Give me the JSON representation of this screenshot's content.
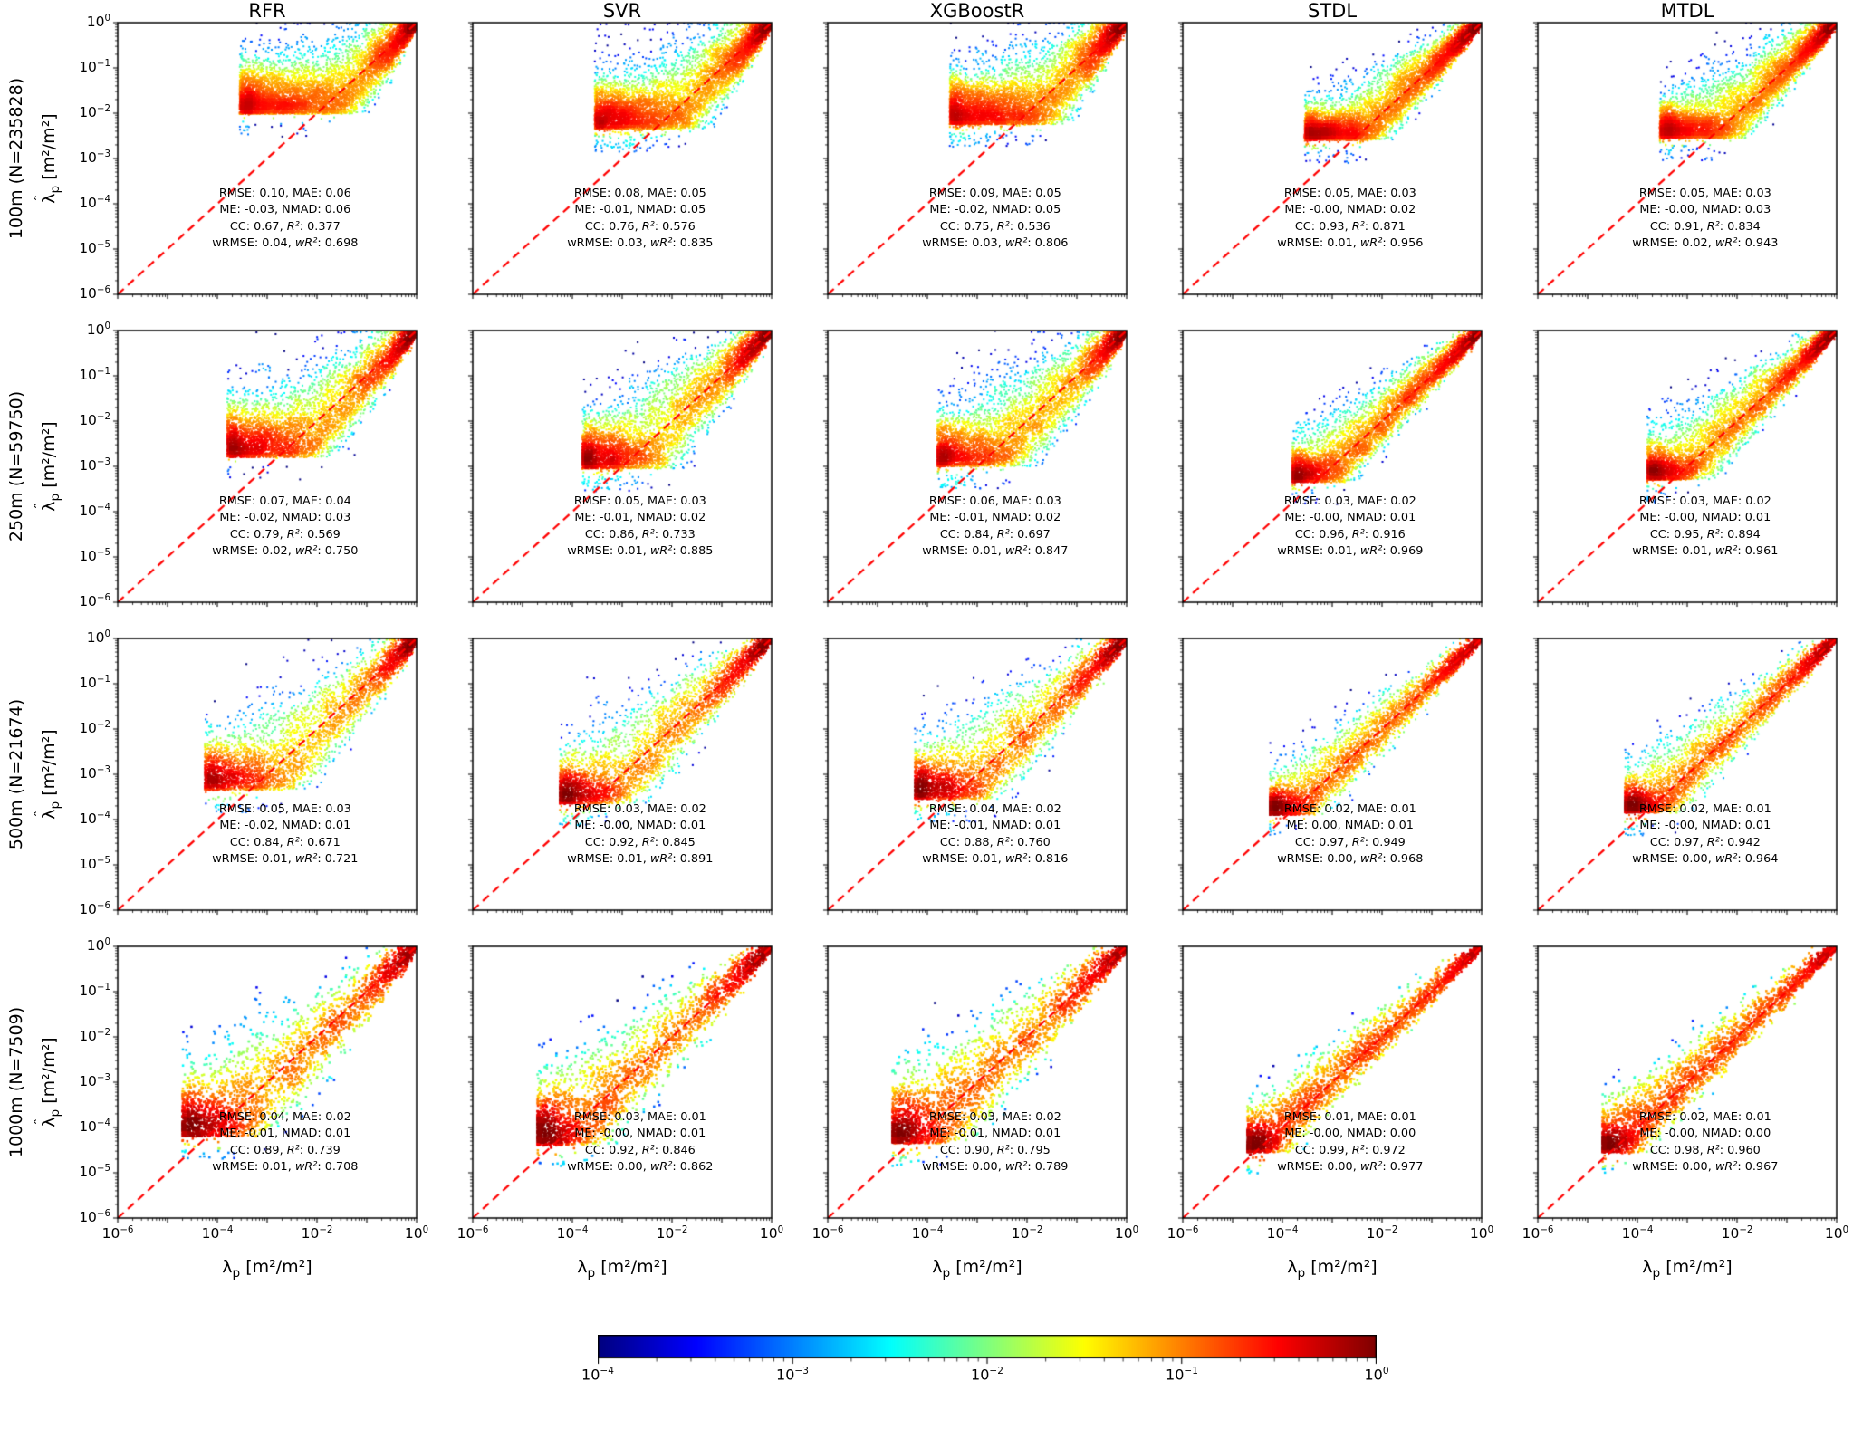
{
  "chart_data": {
    "type": "scatter",
    "description": "Density-colored scatter plots of predicted vs reference plan area index on log-log axes, five models by four resolutions, with 1:1 dashed red line, per-panel error statistics and a shared horizontal jet colorbar.",
    "columns": [
      "RFR",
      "SVR",
      "XGBoostR",
      "STDL",
      "MTDL"
    ],
    "rows": [
      {
        "label": "100m (N=235828)",
        "resolution": "100m",
        "N": 235828,
        "render_hints": {
          "xlo": -3.55,
          "pw": 1.3,
          "n": 6500,
          "corner": 0.1,
          "cs": 0.5,
          "ps": 2,
          "bs": 4
        }
      },
      {
        "label": "250m (N=59750)",
        "resolution": "250m",
        "N": 59750,
        "render_hints": {
          "xlo": -3.8,
          "pw": 1.35,
          "n": 5200,
          "corner": 0.09,
          "cs": 0.5,
          "ps": 2,
          "bs": 4
        }
      },
      {
        "label": "500m (N=21674)",
        "resolution": "500m",
        "N": 21674,
        "render_hints": {
          "xlo": -4.25,
          "pw": 1.45,
          "n": 4200,
          "corner": 0.07,
          "cs": 0.5,
          "ps": 2,
          "bs": 5
        }
      },
      {
        "label": "1000m (N=7509)",
        "resolution": "1000m",
        "N": 7509,
        "render_hints": {
          "xlo": -4.7,
          "pw": 1.55,
          "n": 2700,
          "corner": 0.06,
          "cs": 0.5,
          "ps": 2.5,
          "bs": 7
        }
      }
    ],
    "axes": {
      "xlabel": {
        "variable": "λ",
        "subscript": "p",
        "units": "[m²/m²]"
      },
      "ylabel": {
        "variable": "λ",
        "hat": "ˆ",
        "subscript": "p",
        "units": "[m²/m²]"
      },
      "scale": "log",
      "x_range_log10": [
        -6,
        0
      ],
      "y_range_log10": [
        -6,
        0
      ],
      "x_tick_exponents": [
        -6,
        -4,
        -2,
        0
      ],
      "y_tick_exponents": [
        0,
        -1,
        -2,
        -3,
        -4,
        -5,
        -6
      ]
    },
    "identity_line": {
      "color": "#ff0000",
      "style": "dashed"
    },
    "colorbar": {
      "colormap": "jet",
      "orientation": "horizontal",
      "range_log10": [
        -4,
        0
      ],
      "tick_exponents": [
        -4,
        -3,
        -2,
        -1,
        0
      ]
    },
    "stats_labels": {
      "rmse": "RMSE",
      "mae": "MAE",
      "me": "ME",
      "nmad": "NMAD",
      "cc": "CC",
      "r2": "R²",
      "wrmse": "wRMSE",
      "wr2": "wR²"
    },
    "panels": [
      [
        {
          "model": "RFR",
          "stats": {
            "rmse": "0.10",
            "mae": "0.06",
            "me": "-0.03",
            "nmad": "0.06",
            "cc": "0.67",
            "r2": "0.377",
            "wrmse": "0.04",
            "wr2": "0.698"
          },
          "cloud": {
            "smax": 0.95,
            "smin": 0.05,
            "floor": -2.02,
            "up": 0.5,
            "leak": 0.012,
            "bias": -0.15,
            "asym": 1.25
          }
        },
        {
          "model": "SVR",
          "stats": {
            "rmse": "0.08",
            "mae": "0.05",
            "me": "-0.01",
            "nmad": "0.05",
            "cc": "0.76",
            "r2": "0.576",
            "wrmse": "0.03",
            "wr2": "0.835"
          },
          "cloud": {
            "smax": 0.9,
            "smin": 0.05,
            "floor": -2.35,
            "up": 0.45,
            "leak": 0.05,
            "bias": -0.1,
            "asym": 1.25
          }
        },
        {
          "model": "XGBoostR",
          "stats": {
            "rmse": "0.09",
            "mae": "0.05",
            "me": "-0.02",
            "nmad": "0.05",
            "cc": "0.75",
            "r2": "0.536",
            "wrmse": "0.03",
            "wr2": "0.806"
          },
          "cloud": {
            "smax": 0.92,
            "smin": 0.05,
            "floor": -2.25,
            "up": 0.48,
            "leak": 0.04,
            "bias": -0.12,
            "asym": 1.25
          }
        },
        {
          "model": "STDL",
          "stats": {
            "rmse": "0.05",
            "mae": "0.03",
            "me": "-0.00",
            "nmad": "0.02",
            "cc": "0.93",
            "r2": "0.871",
            "wrmse": "0.01",
            "wr2": "0.956"
          },
          "cloud": {
            "smax": 0.5,
            "smin": 0.03,
            "floor": -2.6,
            "up": 0.32,
            "leak": 0.03,
            "bias": -0.02,
            "asym": 1.5
          }
        },
        {
          "model": "MTDL",
          "stats": {
            "rmse": "0.05",
            "mae": "0.03",
            "me": "-0.00",
            "nmad": "0.03",
            "cc": "0.91",
            "r2": "0.834",
            "wrmse": "0.02",
            "wr2": "0.943"
          },
          "cloud": {
            "smax": 0.58,
            "smin": 0.035,
            "floor": -2.55,
            "up": 0.36,
            "leak": 0.03,
            "bias": -0.03,
            "asym": 1.5
          }
        }
      ],
      [
        {
          "model": "RFR",
          "stats": {
            "rmse": "0.07",
            "mae": "0.04",
            "me": "-0.02",
            "nmad": "0.03",
            "cc": "0.79",
            "r2": "0.569",
            "wrmse": "0.02",
            "wr2": "0.750"
          },
          "cloud": {
            "smax": 0.9,
            "smin": 0.05,
            "floor": -2.8,
            "up": 0.5,
            "leak": 0.02,
            "bias": -0.15,
            "asym": 1.25
          }
        },
        {
          "model": "SVR",
          "stats": {
            "rmse": "0.05",
            "mae": "0.03",
            "me": "-0.01",
            "nmad": "0.02",
            "cc": "0.86",
            "r2": "0.733",
            "wrmse": "0.01",
            "wr2": "0.885"
          },
          "cloud": {
            "smax": 0.82,
            "smin": 0.045,
            "floor": -3.05,
            "up": 0.45,
            "leak": 0.05,
            "bias": -0.1,
            "asym": 1.25
          }
        },
        {
          "model": "XGBoostR",
          "stats": {
            "rmse": "0.06",
            "mae": "0.03",
            "me": "-0.01",
            "nmad": "0.02",
            "cc": "0.84",
            "r2": "0.697",
            "wrmse": "0.01",
            "wr2": "0.847"
          },
          "cloud": {
            "smax": 0.85,
            "smin": 0.05,
            "floor": -3.0,
            "up": 0.48,
            "leak": 0.04,
            "bias": -0.1,
            "asym": 1.25
          }
        },
        {
          "model": "STDL",
          "stats": {
            "rmse": "0.03",
            "mae": "0.02",
            "me": "-0.00",
            "nmad": "0.01",
            "cc": "0.96",
            "r2": "0.916",
            "wrmse": "0.01",
            "wr2": "0.969"
          },
          "cloud": {
            "smax": 0.45,
            "smin": 0.03,
            "floor": -3.35,
            "up": 0.3,
            "leak": 0.03,
            "bias": -0.02,
            "asym": 1.5
          }
        },
        {
          "model": "MTDL",
          "stats": {
            "rmse": "0.03",
            "mae": "0.02",
            "me": "-0.00",
            "nmad": "0.01",
            "cc": "0.95",
            "r2": "0.894",
            "wrmse": "0.01",
            "wr2": "0.961"
          },
          "cloud": {
            "smax": 0.5,
            "smin": 0.032,
            "floor": -3.3,
            "up": 0.33,
            "leak": 0.03,
            "bias": -0.03,
            "asym": 1.5
          }
        }
      ],
      [
        {
          "model": "RFR",
          "stats": {
            "rmse": "0.05",
            "mae": "0.03",
            "me": "-0.02",
            "nmad": "0.01",
            "cc": "0.84",
            "r2": "0.671",
            "wrmse": "0.01",
            "wr2": "0.721"
          },
          "cloud": {
            "smax": 0.85,
            "smin": 0.05,
            "floor": -3.35,
            "up": 0.5,
            "leak": 0.03,
            "bias": -0.15,
            "asym": 1.25
          }
        },
        {
          "model": "SVR",
          "stats": {
            "rmse": "0.03",
            "mae": "0.02",
            "me": "-0.00",
            "nmad": "0.01",
            "cc": "0.92",
            "r2": "0.845",
            "wrmse": "0.01",
            "wr2": "0.891"
          },
          "cloud": {
            "smax": 0.7,
            "smin": 0.04,
            "floor": -3.65,
            "up": 0.42,
            "leak": 0.05,
            "bias": -0.05,
            "asym": 1.3
          }
        },
        {
          "model": "XGBoostR",
          "stats": {
            "rmse": "0.04",
            "mae": "0.02",
            "me": "-0.01",
            "nmad": "0.01",
            "cc": "0.88",
            "r2": "0.760",
            "wrmse": "0.01",
            "wr2": "0.816"
          },
          "cloud": {
            "smax": 0.75,
            "smin": 0.045,
            "floor": -3.55,
            "up": 0.45,
            "leak": 0.05,
            "bias": -0.1,
            "asym": 1.3
          }
        },
        {
          "model": "STDL",
          "stats": {
            "rmse": "0.02",
            "mae": "0.01",
            "me": "0.00",
            "nmad": "0.01",
            "cc": "0.97",
            "r2": "0.949",
            "wrmse": "0.00",
            "wr2": "0.968"
          },
          "cloud": {
            "smax": 0.4,
            "smin": 0.028,
            "floor": -3.9,
            "up": 0.3,
            "leak": 0.04,
            "bias": 0.0,
            "asym": 1.5
          }
        },
        {
          "model": "MTDL",
          "stats": {
            "rmse": "0.02",
            "mae": "0.01",
            "me": "-0.00",
            "nmad": "0.01",
            "cc": "0.97",
            "r2": "0.942",
            "wrmse": "0.00",
            "wr2": "0.964"
          },
          "cloud": {
            "smax": 0.44,
            "smin": 0.03,
            "floor": -3.85,
            "up": 0.3,
            "leak": 0.04,
            "bias": -0.02,
            "asym": 1.5
          }
        }
      ],
      [
        {
          "model": "RFR",
          "stats": {
            "rmse": "0.04",
            "mae": "0.02",
            "me": "-0.01",
            "nmad": "0.01",
            "cc": "0.89",
            "r2": "0.739",
            "wrmse": "0.01",
            "wr2": "0.708"
          },
          "cloud": {
            "smax": 0.8,
            "smin": 0.05,
            "floor": -4.2,
            "up": 0.5,
            "leak": 0.05,
            "bias": -0.12,
            "asym": 1.25
          }
        },
        {
          "model": "SVR",
          "stats": {
            "rmse": "0.03",
            "mae": "0.01",
            "me": "-0.00",
            "nmad": "0.01",
            "cc": "0.92",
            "r2": "0.846",
            "wrmse": "0.00",
            "wr2": "0.862"
          },
          "cloud": {
            "smax": 0.7,
            "smin": 0.04,
            "floor": -4.4,
            "up": 0.45,
            "leak": 0.06,
            "bias": -0.05,
            "asym": 1.3
          }
        },
        {
          "model": "XGBoostR",
          "stats": {
            "rmse": "0.03",
            "mae": "0.02",
            "me": "-0.01",
            "nmad": "0.01",
            "cc": "0.90",
            "r2": "0.795",
            "wrmse": "0.00",
            "wr2": "0.789"
          },
          "cloud": {
            "smax": 0.72,
            "smin": 0.045,
            "floor": -4.35,
            "up": 0.45,
            "leak": 0.06,
            "bias": -0.08,
            "asym": 1.3
          }
        },
        {
          "model": "STDL",
          "stats": {
            "rmse": "0.01",
            "mae": "0.01",
            "me": "-0.00",
            "nmad": "0.00",
            "cc": "0.99",
            "r2": "0.972",
            "wrmse": "0.00",
            "wr2": "0.977"
          },
          "cloud": {
            "smax": 0.35,
            "smin": 0.025,
            "floor": -4.55,
            "up": 0.28,
            "leak": 0.05,
            "bias": 0.0,
            "asym": 1.5
          }
        },
        {
          "model": "MTDL",
          "stats": {
            "rmse": "0.02",
            "mae": "0.01",
            "me": "-0.00",
            "nmad": "0.00",
            "cc": "0.98",
            "r2": "0.960",
            "wrmse": "0.00",
            "wr2": "0.967"
          },
          "cloud": {
            "smax": 0.4,
            "smin": 0.028,
            "floor": -4.55,
            "up": 0.3,
            "leak": 0.05,
            "bias": -0.02,
            "asym": 1.5
          }
        }
      ]
    ]
  }
}
